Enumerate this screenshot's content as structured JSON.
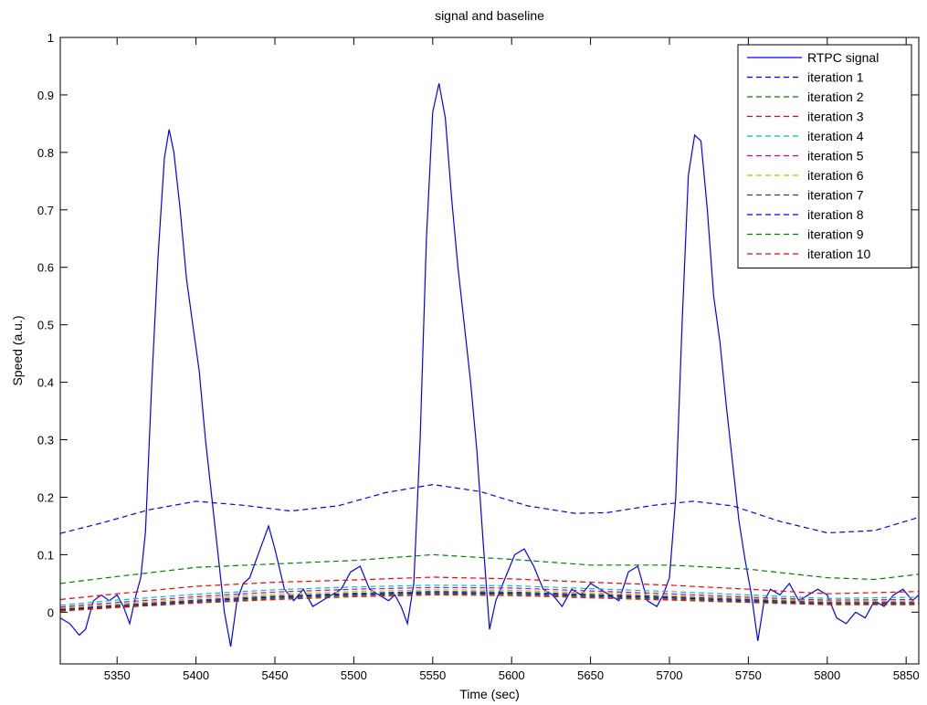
{
  "chart_data": {
    "type": "line",
    "title": "signal and baseline",
    "xlabel": "Time (sec)",
    "ylabel": "Speed (a.u.)",
    "xlim": [
      5314,
      5858
    ],
    "ylim": [
      -0.09,
      1.0
    ],
    "xticks": [
      5350,
      5400,
      5450,
      5500,
      5550,
      5600,
      5650,
      5700,
      5750,
      5800,
      5850
    ],
    "yticks": [
      0,
      0.1,
      0.2,
      0.3,
      0.4,
      0.5,
      0.6,
      0.7,
      0.8,
      0.9,
      1
    ],
    "xtick_labels": [
      "5350",
      "5400",
      "5450",
      "5500",
      "5550",
      "5600",
      "5650",
      "5700",
      "5750",
      "5800",
      "5850"
    ],
    "ytick_labels": [
      "0",
      "0.1",
      "0.2",
      "0.3",
      "0.4",
      "0.5",
      "0.6",
      "0.7",
      "0.8",
      "0.9",
      "1"
    ],
    "grid": false,
    "legend_position": "top-right",
    "series": [
      {
        "name": "RTPC signal",
        "color": "#0000ff",
        "style": "solid",
        "x": [
          5314,
          5320,
          5326,
          5330,
          5335,
          5340,
          5345,
          5350,
          5354,
          5358,
          5362,
          5365,
          5368,
          5372,
          5376,
          5380,
          5383,
          5386,
          5390,
          5394,
          5398,
          5402,
          5406,
          5410,
          5414,
          5418,
          5422,
          5426,
          5430,
          5434,
          5438,
          5442,
          5446,
          5450,
          5456,
          5462,
          5468,
          5474,
          5480,
          5486,
          5492,
          5498,
          5504,
          5510,
          5516,
          5522,
          5526,
          5530,
          5534,
          5538,
          5542,
          5546,
          5550,
          5554,
          5558,
          5562,
          5566,
          5570,
          5574,
          5578,
          5582,
          5586,
          5590,
          5596,
          5602,
          5608,
          5614,
          5620,
          5626,
          5632,
          5638,
          5644,
          5650,
          5656,
          5662,
          5668,
          5674,
          5680,
          5686,
          5692,
          5696,
          5700,
          5704,
          5708,
          5712,
          5716,
          5720,
          5724,
          5728,
          5732,
          5736,
          5740,
          5744,
          5748,
          5752,
          5756,
          5760,
          5764,
          5770,
          5776,
          5782,
          5788,
          5794,
          5800,
          5806,
          5812,
          5818,
          5824,
          5830,
          5836,
          5842,
          5848,
          5854,
          5858
        ],
        "y": [
          -0.01,
          -0.02,
          -0.04,
          -0.03,
          0.02,
          0.03,
          0.02,
          0.03,
          0.01,
          -0.02,
          0.03,
          0.06,
          0.14,
          0.4,
          0.62,
          0.79,
          0.84,
          0.8,
          0.7,
          0.58,
          0.5,
          0.42,
          0.3,
          0.2,
          0.1,
          0.0,
          -0.06,
          0.02,
          0.05,
          0.06,
          0.09,
          0.12,
          0.15,
          0.11,
          0.04,
          0.02,
          0.04,
          0.01,
          0.02,
          0.03,
          0.04,
          0.07,
          0.08,
          0.04,
          0.03,
          0.02,
          0.03,
          0.01,
          -0.02,
          0.05,
          0.3,
          0.65,
          0.87,
          0.92,
          0.86,
          0.72,
          0.6,
          0.5,
          0.4,
          0.28,
          0.12,
          -0.03,
          0.02,
          0.06,
          0.1,
          0.11,
          0.08,
          0.04,
          0.03,
          0.01,
          0.04,
          0.03,
          0.05,
          0.04,
          0.03,
          0.02,
          0.07,
          0.08,
          0.02,
          0.01,
          0.03,
          0.06,
          0.2,
          0.5,
          0.76,
          0.83,
          0.82,
          0.7,
          0.55,
          0.47,
          0.36,
          0.26,
          0.16,
          0.09,
          0.03,
          -0.05,
          0.02,
          0.04,
          0.03,
          0.05,
          0.02,
          0.03,
          0.04,
          0.03,
          -0.01,
          -0.02,
          0.0,
          -0.01,
          0.02,
          0.01,
          0.03,
          0.04,
          0.02,
          0.03
        ]
      },
      {
        "name": "iteration 1",
        "color": "#0000ff",
        "style": "dashed",
        "x": [
          5314,
          5340,
          5370,
          5400,
          5430,
          5460,
          5490,
          5520,
          5550,
          5580,
          5610,
          5640,
          5660,
          5690,
          5715,
          5740,
          5770,
          5800,
          5830,
          5858
        ],
        "y": [
          0.137,
          0.155,
          0.178,
          0.193,
          0.186,
          0.176,
          0.185,
          0.208,
          0.222,
          0.21,
          0.185,
          0.172,
          0.173,
          0.186,
          0.193,
          0.185,
          0.158,
          0.138,
          0.142,
          0.165
        ]
      },
      {
        "name": "iteration 2",
        "color": "#008000",
        "style": "dashed",
        "x": [
          5314,
          5350,
          5400,
          5450,
          5500,
          5550,
          5600,
          5650,
          5700,
          5750,
          5800,
          5830,
          5858
        ],
        "y": [
          0.05,
          0.062,
          0.078,
          0.084,
          0.09,
          0.1,
          0.092,
          0.082,
          0.082,
          0.075,
          0.06,
          0.057,
          0.066
        ]
      },
      {
        "name": "iteration 3",
        "color": "#ff0000",
        "style": "dashed",
        "x": [
          5314,
          5350,
          5400,
          5450,
          5500,
          5550,
          5600,
          5650,
          5700,
          5750,
          5800,
          5858
        ],
        "y": [
          0.022,
          0.032,
          0.045,
          0.052,
          0.056,
          0.061,
          0.058,
          0.052,
          0.047,
          0.04,
          0.032,
          0.036
        ]
      },
      {
        "name": "iteration 4",
        "color": "#00bfbf",
        "style": "dashed",
        "x": [
          5314,
          5350,
          5400,
          5450,
          5500,
          5550,
          5600,
          5650,
          5700,
          5750,
          5800,
          5858
        ],
        "y": [
          0.012,
          0.021,
          0.031,
          0.039,
          0.044,
          0.047,
          0.046,
          0.041,
          0.036,
          0.03,
          0.024,
          0.026
        ]
      },
      {
        "name": "iteration 5",
        "color": "#bf00bf",
        "style": "dashed",
        "x": [
          5314,
          5350,
          5400,
          5450,
          5500,
          5550,
          5600,
          5650,
          5700,
          5750,
          5800,
          5858
        ],
        "y": [
          0.009,
          0.017,
          0.027,
          0.035,
          0.04,
          0.043,
          0.042,
          0.037,
          0.032,
          0.026,
          0.021,
          0.022
        ]
      },
      {
        "name": "iteration 6",
        "color": "#bfbf00",
        "style": "dashed",
        "x": [
          5314,
          5350,
          5400,
          5450,
          5500,
          5550,
          5600,
          5650,
          5700,
          5750,
          5800,
          5858
        ],
        "y": [
          0.007,
          0.014,
          0.024,
          0.031,
          0.036,
          0.039,
          0.038,
          0.034,
          0.029,
          0.024,
          0.019,
          0.019
        ]
      },
      {
        "name": "iteration 7",
        "color": "#404040",
        "style": "dashed",
        "x": [
          5314,
          5350,
          5400,
          5450,
          5500,
          5550,
          5600,
          5650,
          5700,
          5750,
          5800,
          5858
        ],
        "y": [
          0.005,
          0.012,
          0.021,
          0.028,
          0.033,
          0.036,
          0.035,
          0.031,
          0.027,
          0.022,
          0.017,
          0.017
        ]
      },
      {
        "name": "iteration 8",
        "color": "#0000ff",
        "style": "dashed",
        "x": [
          5314,
          5350,
          5400,
          5450,
          5500,
          5550,
          5600,
          5650,
          5700,
          5750,
          5800,
          5858
        ],
        "y": [
          0.004,
          0.01,
          0.019,
          0.026,
          0.031,
          0.034,
          0.033,
          0.029,
          0.025,
          0.02,
          0.015,
          0.015
        ]
      },
      {
        "name": "iteration 9",
        "color": "#008000",
        "style": "dashed",
        "x": [
          5314,
          5350,
          5400,
          5450,
          5500,
          5550,
          5600,
          5650,
          5700,
          5750,
          5800,
          5858
        ],
        "y": [
          0.003,
          0.009,
          0.017,
          0.024,
          0.029,
          0.032,
          0.031,
          0.027,
          0.023,
          0.018,
          0.014,
          0.014
        ]
      },
      {
        "name": "iteration 10",
        "color": "#ff0000",
        "style": "dashed",
        "x": [
          5314,
          5350,
          5400,
          5450,
          5500,
          5550,
          5600,
          5650,
          5700,
          5750,
          5800,
          5858
        ],
        "y": [
          0.002,
          0.008,
          0.016,
          0.022,
          0.027,
          0.03,
          0.029,
          0.025,
          0.021,
          0.017,
          0.013,
          0.013
        ]
      }
    ]
  }
}
